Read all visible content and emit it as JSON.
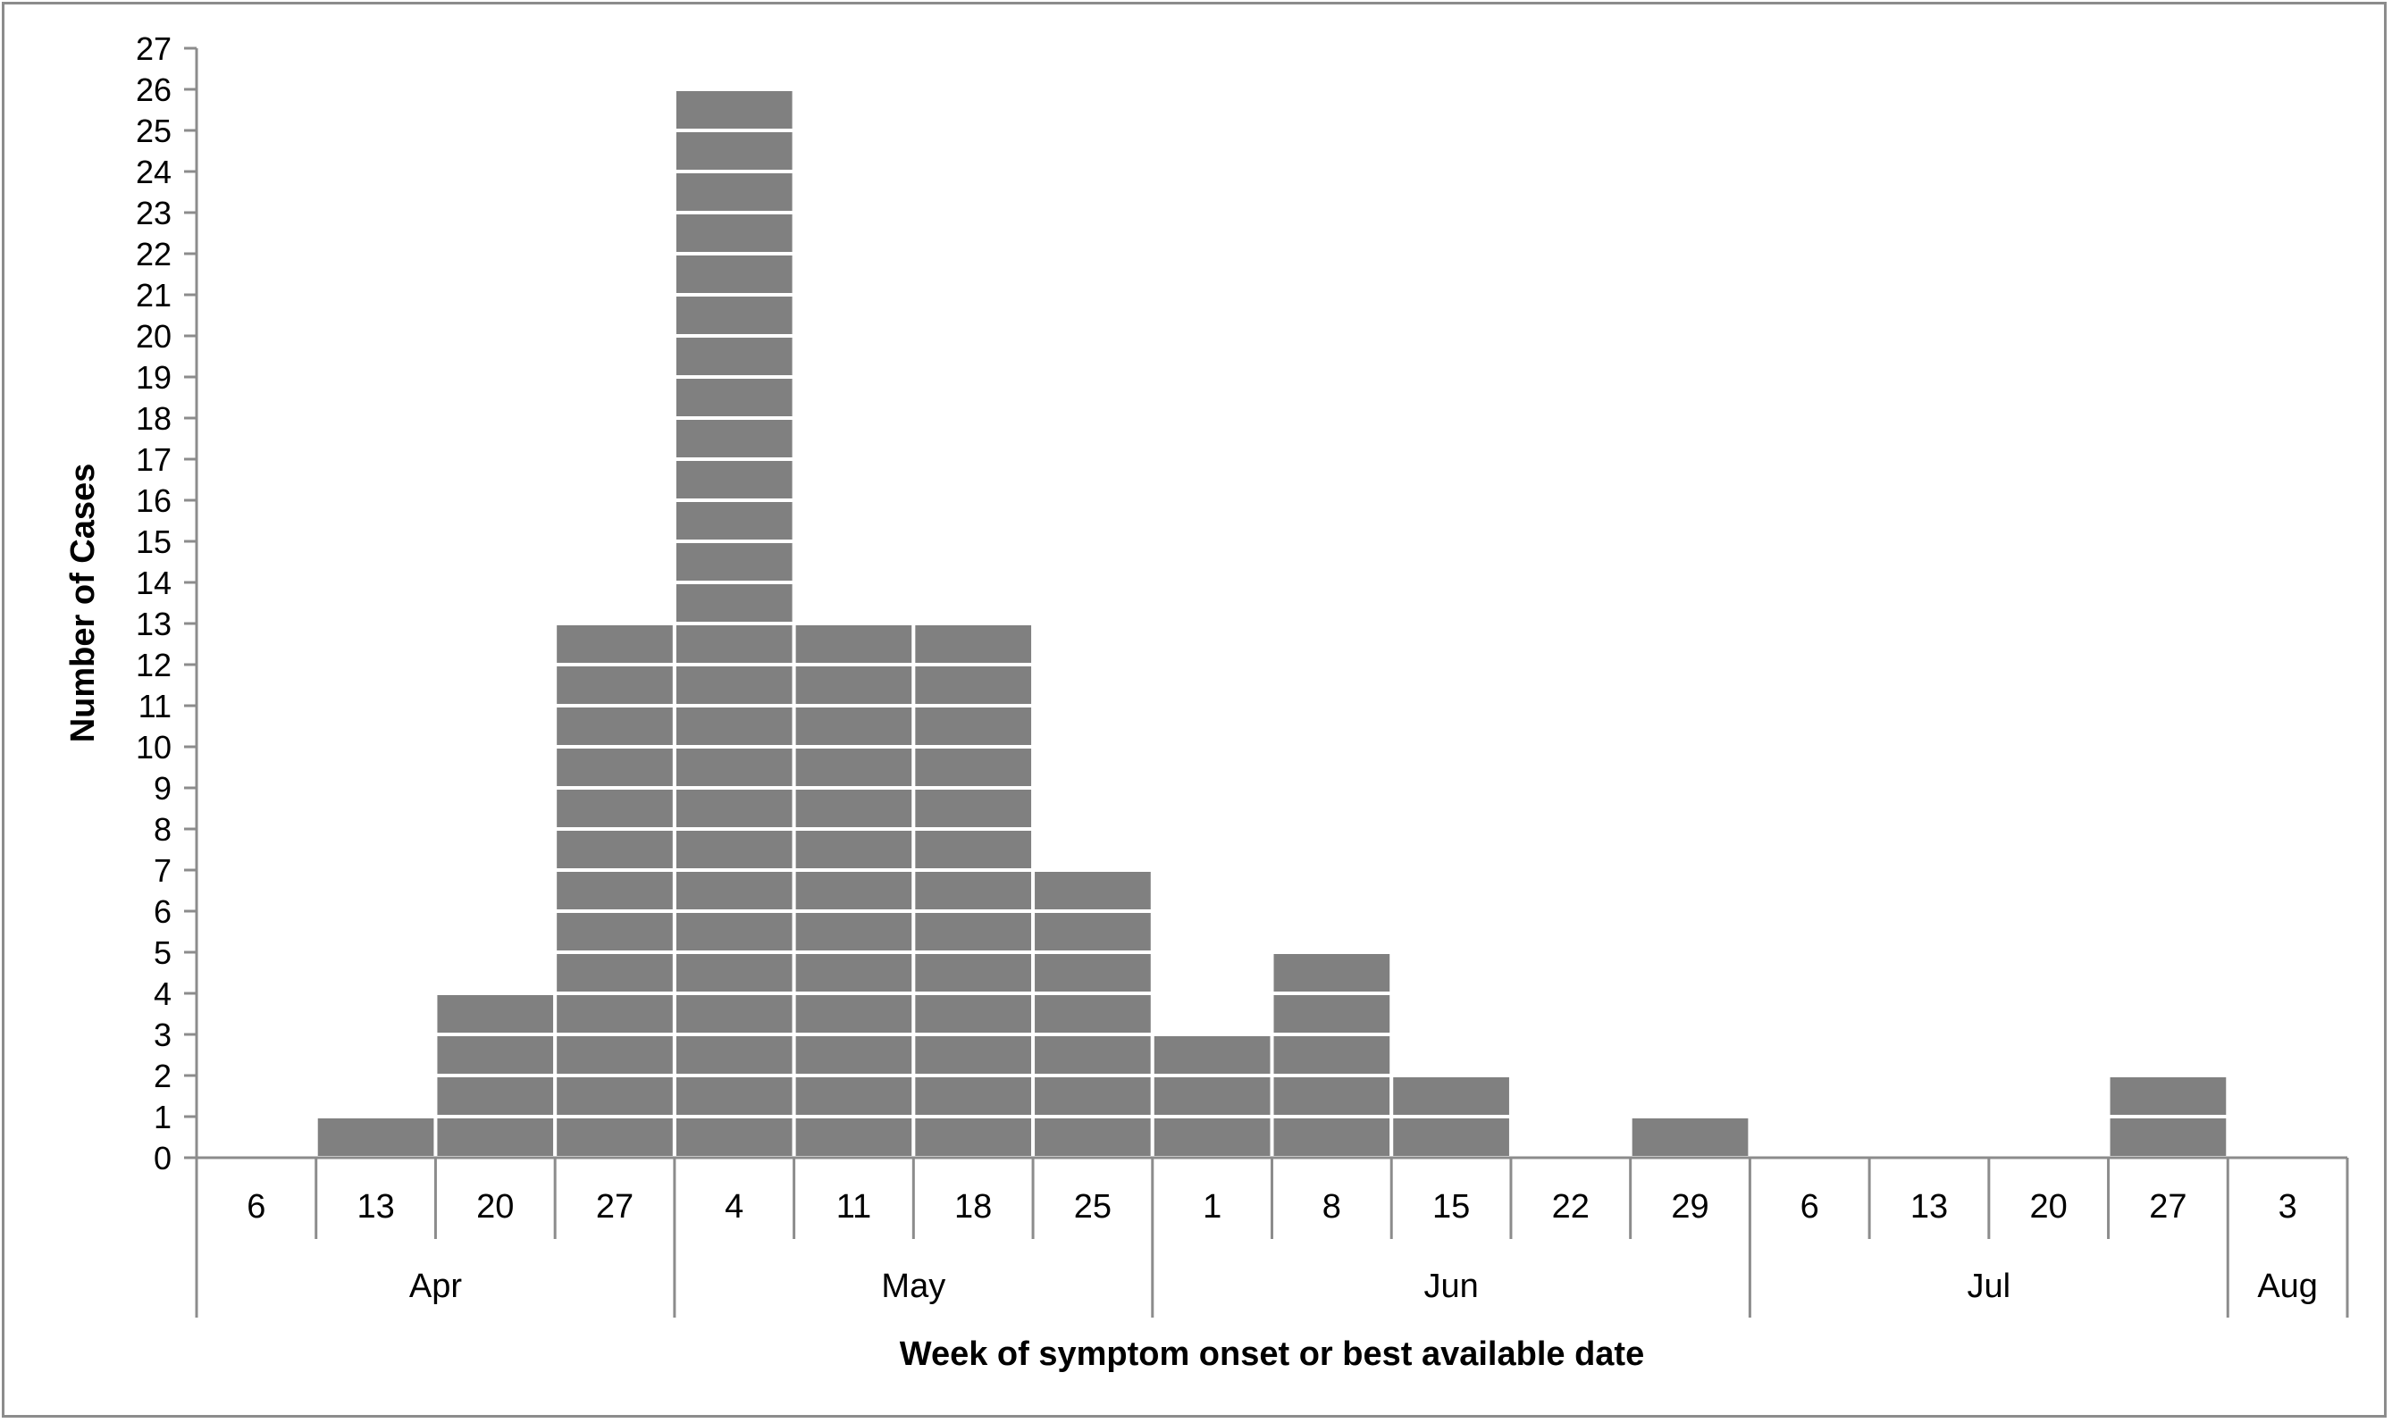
{
  "chart_data": {
    "type": "bar",
    "style": "epidemic curve (stacked unit boxes, one box per case)",
    "xlabel": "Week of symptom onset or best available date",
    "ylabel": "Number of Cases",
    "ylim": [
      0,
      27
    ],
    "yticks": [
      0,
      1,
      2,
      3,
      4,
      5,
      6,
      7,
      8,
      9,
      10,
      11,
      12,
      13,
      14,
      15,
      16,
      17,
      18,
      19,
      20,
      21,
      22,
      23,
      24,
      25,
      26,
      27
    ],
    "categories": [
      "6",
      "13",
      "20",
      "27",
      "4",
      "11",
      "18",
      "25",
      "1",
      "8",
      "15",
      "22",
      "29",
      "6",
      "13",
      "20",
      "27",
      "3"
    ],
    "values": [
      0,
      1,
      4,
      13,
      26,
      13,
      13,
      7,
      3,
      5,
      2,
      0,
      1,
      0,
      0,
      0,
      2,
      0
    ],
    "months": [
      {
        "label": "Apr",
        "start": 0,
        "span": 4
      },
      {
        "label": "May",
        "start": 4,
        "span": 4
      },
      {
        "label": "Jun",
        "start": 8,
        "span": 5
      },
      {
        "label": "Jul",
        "start": 13,
        "span": 4
      },
      {
        "label": "Aug",
        "start": 17,
        "span": 1
      }
    ],
    "bar_color": "#808080",
    "grid": false,
    "legend": "none"
  }
}
